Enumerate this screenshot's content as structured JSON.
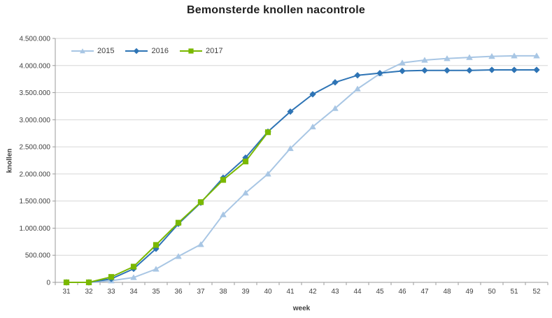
{
  "chart_data": {
    "type": "line",
    "title": "Bemonsterde knollen nacontrole",
    "xlabel": "week",
    "ylabel": "knollen",
    "categories": [
      31,
      32,
      33,
      34,
      35,
      36,
      37,
      38,
      39,
      40,
      41,
      42,
      43,
      44,
      45,
      46,
      47,
      48,
      49,
      50,
      51,
      52
    ],
    "ylim": [
      0,
      4500000
    ],
    "ytick_step": 500000,
    "grid": "horizontal",
    "legend_position": "top-left-inside",
    "number_format": "thousands-dot-separated",
    "series": [
      {
        "name": "2015",
        "color": "#a8c6e4",
        "marker": "triangle",
        "values": [
          0,
          0,
          30000,
          90000,
          245000,
          480000,
          700000,
          1250000,
          1650000,
          2000000,
          2470000,
          2870000,
          3210000,
          3570000,
          3850000,
          4050000,
          4100000,
          4130000,
          4150000,
          4170000,
          4180000,
          4180000
        ]
      },
      {
        "name": "2016",
        "color": "#2e74b5",
        "marker": "diamond",
        "values": [
          0,
          0,
          65000,
          250000,
          620000,
          1080000,
          1470000,
          1930000,
          2300000,
          2780000,
          3150000,
          3470000,
          3690000,
          3820000,
          3860000,
          3900000,
          3910000,
          3910000,
          3910000,
          3920000,
          3920000,
          3920000
        ]
      },
      {
        "name": "2017",
        "color": "#7ab800",
        "marker": "square",
        "values": [
          0,
          0,
          100000,
          290000,
          690000,
          1100000,
          1480000,
          1890000,
          2230000,
          2770000,
          null,
          null,
          null,
          null,
          null,
          null,
          null,
          null,
          null,
          null,
          null,
          null
        ]
      }
    ]
  },
  "colors": {
    "axis": "#9b9b9b",
    "grid": "#d6d6d6",
    "tick_label": "#404040",
    "title": "#1f1f1f",
    "background": "#ffffff"
  }
}
